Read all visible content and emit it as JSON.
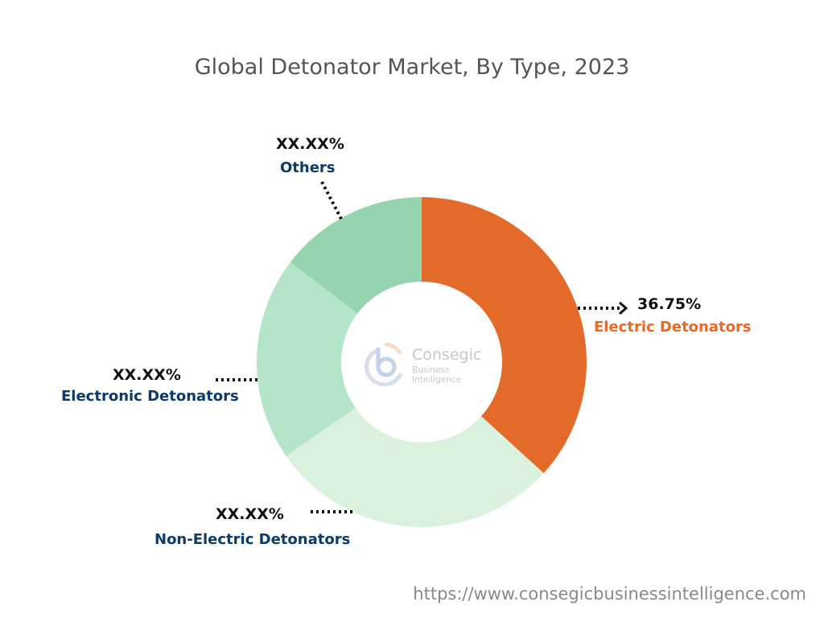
{
  "chart_data": {
    "type": "pie",
    "variant": "donut",
    "title": "Global Detonator Market, By Type, 2023",
    "categories": [
      "Electric Detonators",
      "Non-Electric Detonators",
      "Electronic Detonators",
      "Others"
    ],
    "values": [
      36.75,
      28.6,
      20.0,
      14.65
    ],
    "value_labels": [
      "36.75%",
      "XX.XX%",
      "XX.XX%",
      "XX.XX%"
    ],
    "colors": [
      "#E46A29",
      "#DAF2DD",
      "#B5E5C9",
      "#94D5B0"
    ],
    "label_colors": [
      "#E46A29",
      "#0D3A66",
      "#0D3A66",
      "#0D3A66"
    ]
  },
  "watermark": {
    "line1": "Consegic",
    "line2": "Business Intelligence"
  },
  "footer_url": "https://www.consegicbusinessintelligence.com"
}
